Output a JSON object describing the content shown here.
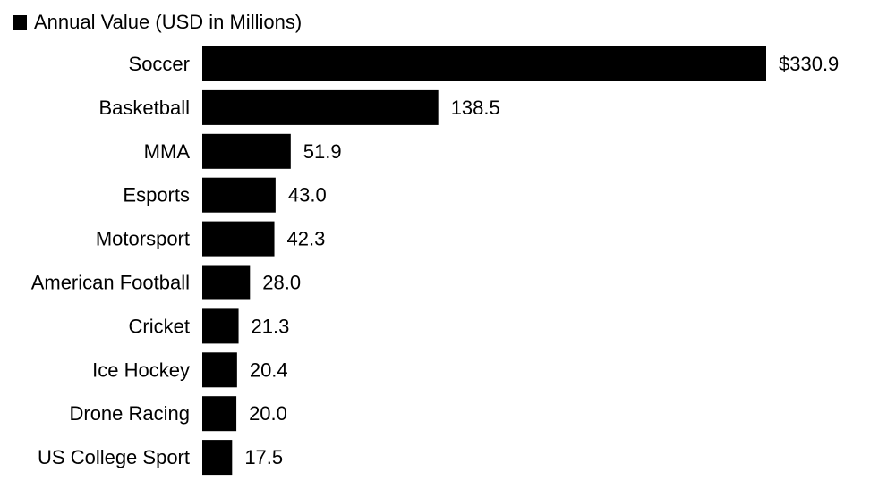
{
  "chart_data": {
    "type": "bar",
    "orientation": "horizontal",
    "series": [
      {
        "name": "Annual Value (USD in Millions)",
        "color": "#000000",
        "values": [
          330.9,
          138.5,
          51.9,
          43.0,
          42.3,
          28.0,
          21.3,
          20.4,
          20.0,
          17.5
        ]
      }
    ],
    "categories": [
      "Soccer",
      "Basketball",
      "MMA",
      "Esports",
      "Motorsport",
      "American Football",
      "Cricket",
      "Ice Hockey",
      "Drone Racing",
      "US College Sport"
    ],
    "value_labels": [
      "$330.9",
      "138.5",
      "51.9",
      "43.0",
      "42.3",
      "28.0",
      "21.3",
      "20.4",
      "20.0",
      "17.5"
    ],
    "legend_position": "top-left",
    "grid": false,
    "xlim": [
      0,
      330.9
    ]
  }
}
